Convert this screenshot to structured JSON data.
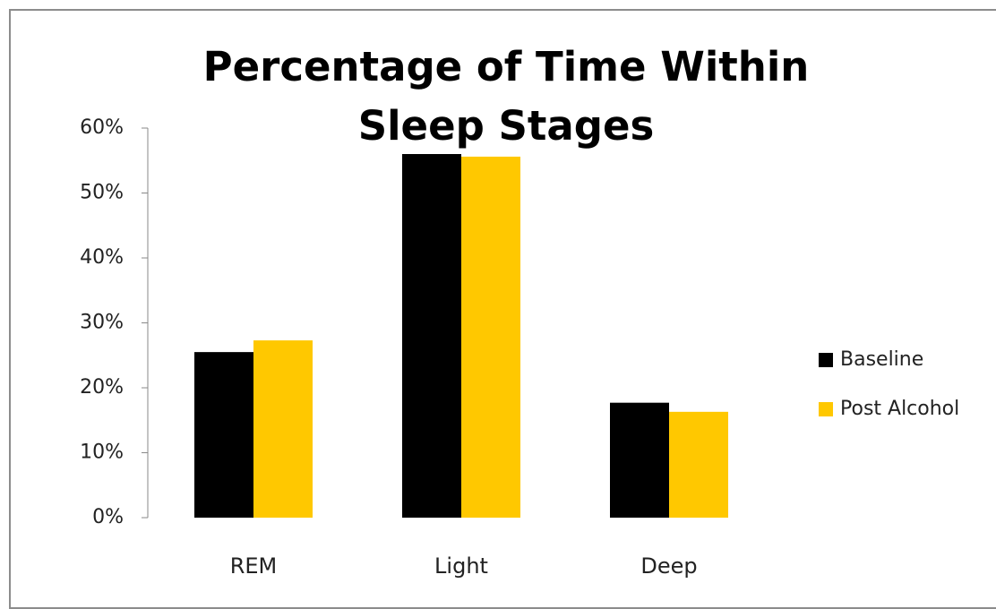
{
  "chart_data": {
    "type": "bar",
    "title": "Percentage of Time Within Sleep Stages",
    "categories": [
      "REM",
      "Light",
      "Deep"
    ],
    "series": [
      {
        "name": "Baseline",
        "color": "#000000",
        "values": [
          25.5,
          56,
          17.7
        ]
      },
      {
        "name": "Post Alcohol",
        "color": "#ffc800",
        "values": [
          27.3,
          55.6,
          16.3
        ]
      }
    ],
    "ylim": [
      0,
      60
    ],
    "yticks": [
      {
        "value": 0,
        "label": "0%"
      },
      {
        "value": 10,
        "label": "10%"
      },
      {
        "value": 20,
        "label": "20%"
      },
      {
        "value": 30,
        "label": "30%"
      },
      {
        "value": 40,
        "label": "40%"
      },
      {
        "value": 50,
        "label": "50%"
      },
      {
        "value": 60,
        "label": "60%"
      }
    ],
    "legend": "right"
  }
}
